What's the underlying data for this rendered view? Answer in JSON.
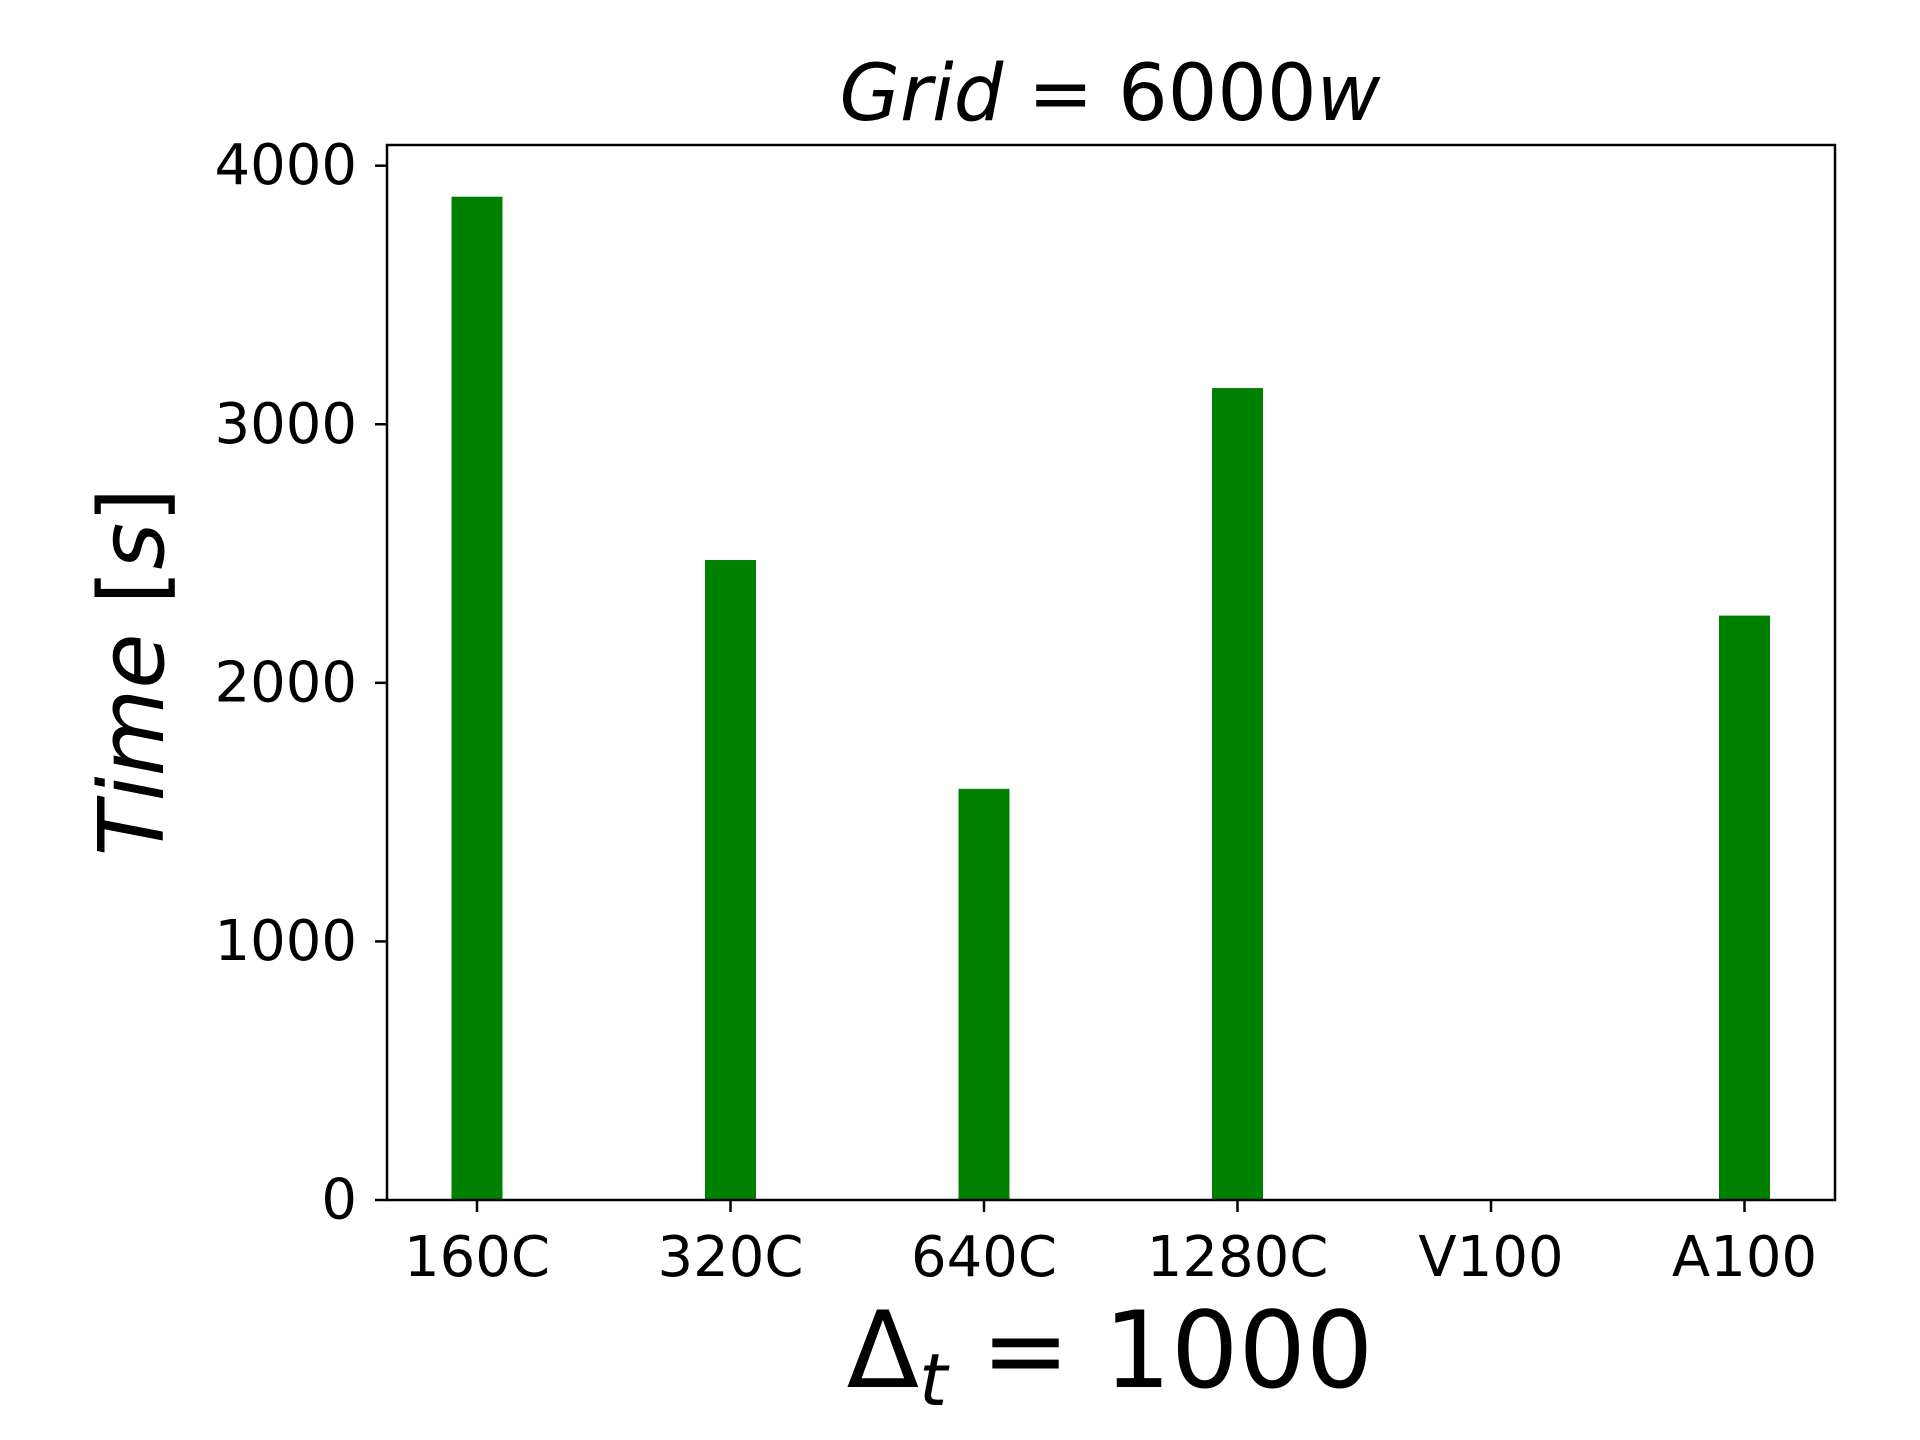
{
  "chart_data": {
    "type": "bar",
    "title": {
      "italic": "Grid",
      "rest": " = 6000",
      "italic_suffix": "w"
    },
    "xlabel": {
      "symbol": "Δ",
      "subscript": "t",
      "rest": " = 1000"
    },
    "ylabel": {
      "italic": "Time",
      "rest": " [",
      "unit_italic": "s",
      "close": "]"
    },
    "categories": [
      "160C",
      "320C",
      "640C",
      "1280C",
      "V100",
      "A100"
    ],
    "values": [
      3880,
      2475,
      1590,
      3140,
      0,
      2260
    ],
    "yticks": [
      "0",
      "1000",
      "2000",
      "3000",
      "4000"
    ],
    "ylim": [
      0,
      4080
    ],
    "grid": false,
    "bar_color": "#008000"
  }
}
